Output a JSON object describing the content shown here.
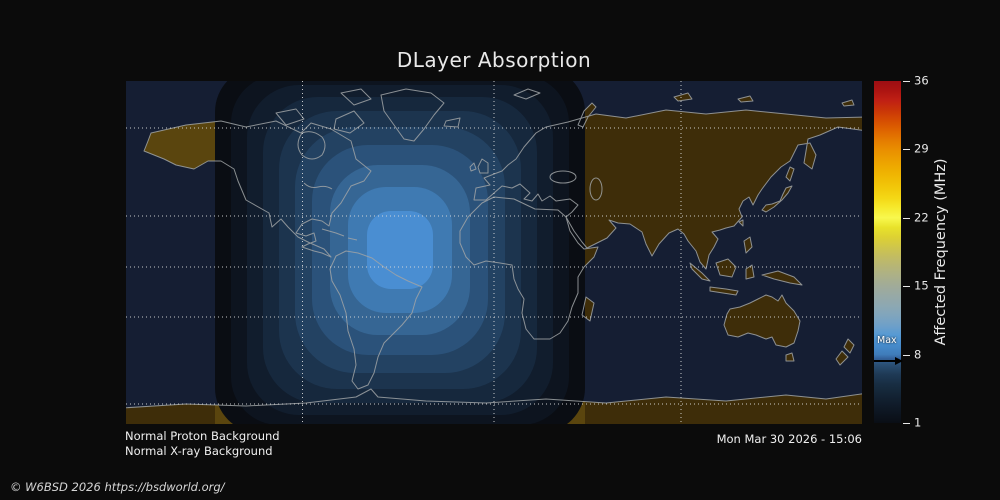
{
  "title": "DLayer Absorption",
  "status": {
    "proton": "Normal Proton Background",
    "xray": "Normal X-ray Background"
  },
  "timestamp": "Mon Mar 30 2026 - 15:06",
  "copyright": "© W6BSD 2026 https://bsdworld.org/",
  "colorbar": {
    "label": "Affected Frequency (MHz)",
    "min": 1,
    "max": 36,
    "ticks": [
      36,
      29,
      22,
      15,
      8,
      1
    ],
    "max_marker": {
      "label": "Max",
      "value": 8
    },
    "gradient_stops": [
      {
        "v": 1,
        "c": "#0a0e15"
      },
      {
        "v": 2,
        "c": "#0d1520"
      },
      {
        "v": 3,
        "c": "#101c2b"
      },
      {
        "v": 4,
        "c": "#142536"
      },
      {
        "v": 5,
        "c": "#182e43"
      },
      {
        "v": 6,
        "c": "#1f3a56"
      },
      {
        "v": 7,
        "c": "#2a4f74"
      },
      {
        "v": 7.6,
        "c": "#34629c"
      },
      {
        "v": 8,
        "c": "#3f7cba"
      },
      {
        "v": 9,
        "c": "#478ccc"
      },
      {
        "v": 10,
        "c": "#569ad4"
      },
      {
        "v": 11,
        "c": "#6fa0c8"
      },
      {
        "v": 12,
        "c": "#80a5bd"
      },
      {
        "v": 13,
        "c": "#8da8b2"
      },
      {
        "v": 14,
        "c": "#97a9a6"
      },
      {
        "v": 15,
        "c": "#a0ab99"
      },
      {
        "v": 16,
        "c": "#abb089"
      },
      {
        "v": 17,
        "c": "#b6b577"
      },
      {
        "v": 18,
        "c": "#c2bc62"
      },
      {
        "v": 19,
        "c": "#cfc64b"
      },
      {
        "v": 20,
        "c": "#ddd133"
      },
      {
        "v": 21,
        "c": "#e8e22a"
      },
      {
        "v": 22,
        "c": "#f8f84e"
      },
      {
        "v": 23,
        "c": "#f6ea2e"
      },
      {
        "v": 24,
        "c": "#f4d816"
      },
      {
        "v": 25,
        "c": "#f2c90b"
      },
      {
        "v": 26,
        "c": "#f0bb04"
      },
      {
        "v": 27,
        "c": "#eead00"
      },
      {
        "v": 28,
        "c": "#ec9e00"
      },
      {
        "v": 29,
        "c": "#e98e00"
      },
      {
        "v": 30,
        "c": "#e47a00"
      },
      {
        "v": 31,
        "c": "#de6300"
      },
      {
        "v": 32,
        "c": "#d54c02"
      },
      {
        "v": 33,
        "c": "#c93508"
      },
      {
        "v": 34,
        "c": "#c02014"
      },
      {
        "v": 35,
        "c": "#ac1412"
      },
      {
        "v": 36,
        "c": "#9c0e13"
      }
    ]
  },
  "map": {
    "ocean_night": "#151e33",
    "land_night": "#3e2d09",
    "land_day": "#5a450e",
    "coastline": "#a0a4a6",
    "grid_color": "#dcdcdc",
    "absorption_bands": [
      "#0a0d13",
      "#0d141f",
      "#111d2d",
      "#16283d",
      "#1c344e",
      "#234262",
      "#2b527a",
      "#366694",
      "#3f7ab2",
      "#4a8ed2"
    ]
  },
  "chart_data": {
    "type": "heatmap",
    "title": "DLayer Absorption",
    "colorbar": {
      "label": "Affected Frequency (MHz)",
      "units": "MHz",
      "min": 1,
      "max": 36,
      "ticks": [
        1,
        8,
        15,
        22,
        29,
        36
      ]
    },
    "max_affected_frequency_mhz": 8,
    "timestamp": "Mon Mar 30 2026 - 15:06",
    "annotations": [
      "Normal Proton Background",
      "Normal X-ray Background"
    ],
    "description": "Equirectangular world map of HF D-layer absorption. Concentric stepped absorption contours (dark navy out to bright blue core, ~8 MHz max) centered over northern South America / western Atlantic around the subsolar point; night hemisphere unshaded with dark-brown continents, daylit Alaska and Antarctic fringe in lighter brown."
  }
}
